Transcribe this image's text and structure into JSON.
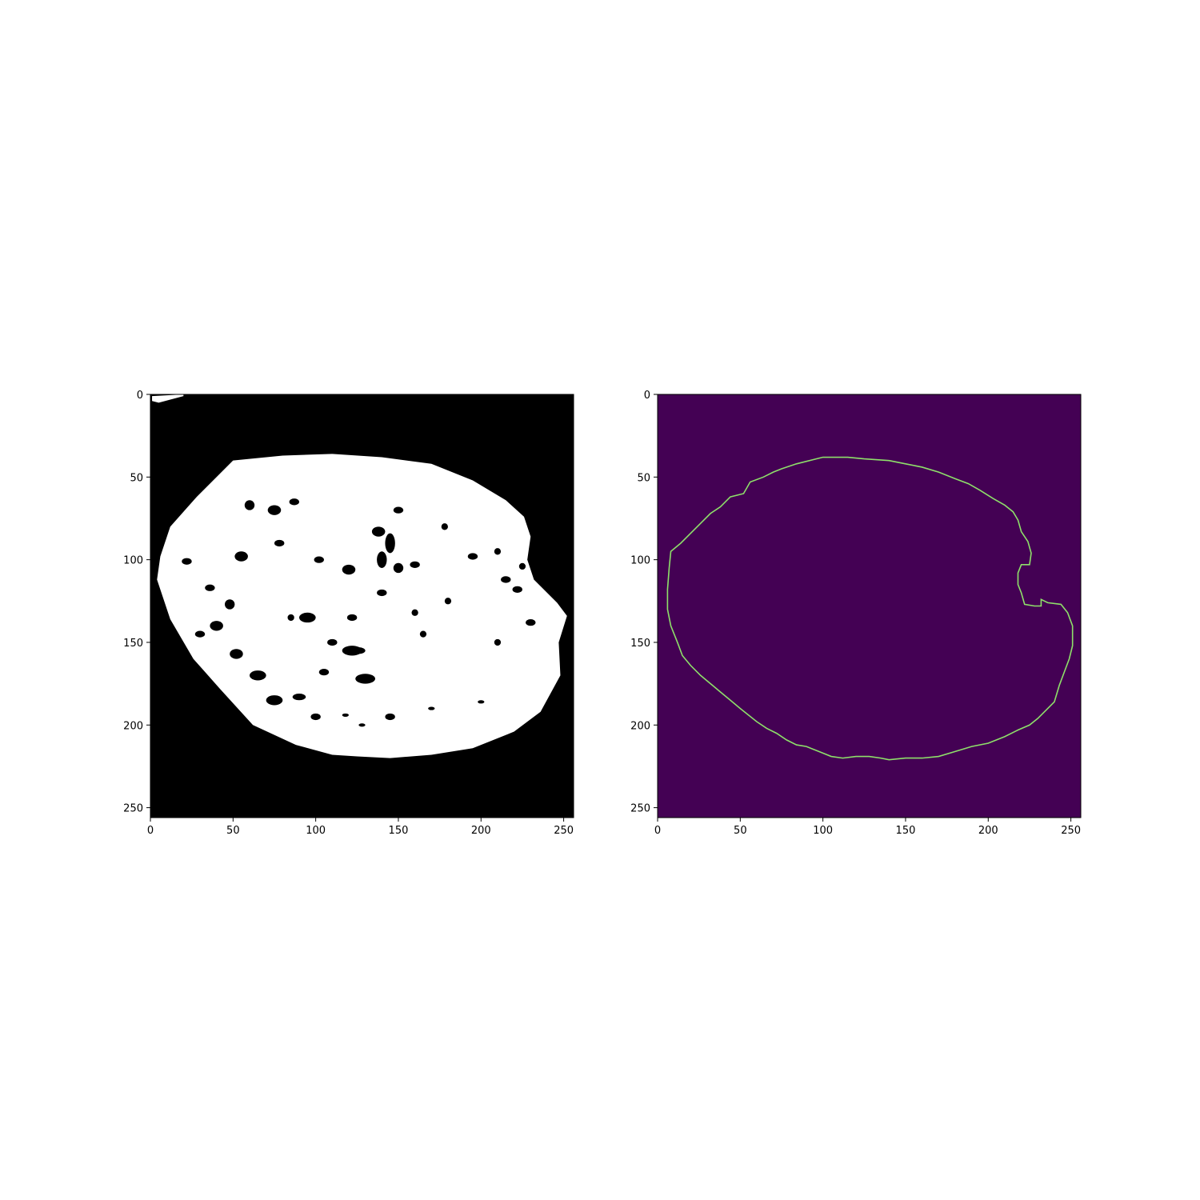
{
  "chart_data": [
    {
      "type": "heatmap",
      "title": "",
      "xlabel": "",
      "ylabel": "",
      "image_size": [
        256,
        256
      ],
      "xlim": [
        0,
        256
      ],
      "ylim": [
        256,
        0
      ],
      "x_ticks": [
        0,
        50,
        100,
        150,
        200,
        250
      ],
      "y_ticks": [
        0,
        50,
        100,
        150,
        200,
        250
      ],
      "x_tick_labels": [
        "0",
        "50",
        "100",
        "150",
        "200",
        "250"
      ],
      "y_tick_labels": [
        "0",
        "50",
        "100",
        "150",
        "200",
        "250"
      ],
      "colormap": "gray",
      "background_color": "#000000",
      "foreground_color": "#ffffff",
      "content": "binary mask",
      "mask_outline": [
        [
          1,
          1
        ],
        [
          20,
          0
        ],
        [
          20,
          1
        ],
        [
          5,
          5
        ],
        [
          1,
          4
        ],
        [
          50,
          40
        ],
        [
          80,
          37
        ],
        [
          110,
          36
        ],
        [
          140,
          38
        ],
        [
          170,
          42
        ],
        [
          195,
          52
        ],
        [
          215,
          64
        ],
        [
          226,
          74
        ],
        [
          230,
          86
        ],
        [
          228,
          100
        ],
        [
          232,
          112
        ],
        [
          246,
          126
        ],
        [
          252,
          134
        ],
        [
          247,
          150
        ],
        [
          248,
          170
        ],
        [
          236,
          192
        ],
        [
          220,
          204
        ],
        [
          195,
          214
        ],
        [
          170,
          218
        ],
        [
          145,
          220
        ],
        [
          125,
          219
        ],
        [
          110,
          218
        ],
        [
          88,
          212
        ],
        [
          62,
          200
        ],
        [
          42,
          178
        ],
        [
          26,
          160
        ],
        [
          12,
          136
        ],
        [
          4,
          112
        ],
        [
          6,
          98
        ],
        [
          12,
          80
        ],
        [
          28,
          62
        ]
      ],
      "holes": [
        [
          95,
          135,
          5,
          3
        ],
        [
          102,
          100,
          3,
          2
        ],
        [
          120,
          106,
          4,
          3
        ],
        [
          75,
          185,
          5,
          3
        ],
        [
          90,
          183,
          4,
          2
        ],
        [
          122,
          155,
          6,
          3
        ],
        [
          55,
          98,
          4,
          3
        ],
        [
          22,
          101,
          3,
          2
        ],
        [
          65,
          170,
          5,
          3
        ],
        [
          130,
          172,
          6,
          3
        ],
        [
          40,
          140,
          4,
          3
        ],
        [
          52,
          157,
          4,
          3
        ],
        [
          30,
          145,
          3,
          2
        ],
        [
          110,
          150,
          3,
          2
        ],
        [
          140,
          120,
          3,
          2
        ],
        [
          150,
          105,
          3,
          3
        ],
        [
          165,
          145,
          2,
          2
        ],
        [
          210,
          150,
          2,
          2
        ],
        [
          100,
          195,
          3,
          2
        ],
        [
          138,
          83,
          4,
          3
        ],
        [
          126,
          155,
          4,
          2
        ],
        [
          105,
          168,
          3,
          2
        ],
        [
          145,
          195,
          3,
          2
        ],
        [
          48,
          127,
          3,
          3
        ],
        [
          75,
          70,
          4,
          3
        ],
        [
          87,
          65,
          3,
          2
        ],
        [
          60,
          67,
          3,
          3
        ],
        [
          150,
          70,
          3,
          2
        ],
        [
          145,
          90,
          3,
          6
        ],
        [
          140,
          100,
          3,
          5
        ],
        [
          160,
          103,
          3,
          2
        ],
        [
          195,
          98,
          3,
          2
        ],
        [
          215,
          112,
          3,
          2
        ],
        [
          222,
          118,
          3,
          2
        ],
        [
          230,
          138,
          3,
          2
        ],
        [
          122,
          135,
          3,
          2
        ],
        [
          160,
          132,
          2,
          2
        ],
        [
          78,
          90,
          3,
          2
        ],
        [
          85,
          135,
          2,
          2
        ],
        [
          170,
          190,
          2,
          1
        ],
        [
          118,
          194,
          2,
          1
        ],
        [
          200,
          186,
          2,
          1
        ],
        [
          36,
          117,
          3,
          2
        ],
        [
          128,
          200,
          2,
          1
        ],
        [
          210,
          95,
          2,
          2
        ],
        [
          225,
          104,
          2,
          2
        ],
        [
          178,
          80,
          2,
          2
        ],
        [
          180,
          125,
          2,
          2
        ]
      ]
    },
    {
      "type": "heatmap",
      "title": "",
      "xlabel": "",
      "ylabel": "",
      "image_size": [
        256,
        256
      ],
      "xlim": [
        0,
        256
      ],
      "ylim": [
        256,
        0
      ],
      "x_ticks": [
        0,
        50,
        100,
        150,
        200,
        250
      ],
      "y_ticks": [
        0,
        50,
        100,
        150,
        200,
        250
      ],
      "x_tick_labels": [
        "0",
        "50",
        "100",
        "150",
        "200",
        "250"
      ],
      "y_tick_labels": [
        "0",
        "50",
        "100",
        "150",
        "200",
        "250"
      ],
      "colormap": "viridis",
      "background_color": "#440154",
      "contour_color": "#8ee06a",
      "content": "contour",
      "contour": [
        [
          100,
          38
        ],
        [
          115,
          38
        ],
        [
          125,
          39
        ],
        [
          140,
          40
        ],
        [
          150,
          42
        ],
        [
          160,
          44
        ],
        [
          170,
          47
        ],
        [
          180,
          51
        ],
        [
          188,
          54
        ],
        [
          195,
          58
        ],
        [
          203,
          63
        ],
        [
          210,
          67
        ],
        [
          215,
          71
        ],
        [
          218,
          76
        ],
        [
          220,
          83
        ],
        [
          224,
          89
        ],
        [
          226,
          96
        ],
        [
          225,
          103
        ],
        [
          220,
          103
        ],
        [
          218,
          108
        ],
        [
          218,
          115
        ],
        [
          220,
          120
        ],
        [
          222,
          127
        ],
        [
          228,
          128
        ],
        [
          232,
          128
        ],
        [
          232,
          124
        ],
        [
          236,
          126
        ],
        [
          244,
          127
        ],
        [
          248,
          132
        ],
        [
          251,
          140
        ],
        [
          251,
          152
        ],
        [
          249,
          160
        ],
        [
          246,
          168
        ],
        [
          243,
          176
        ],
        [
          240,
          186
        ],
        [
          235,
          191
        ],
        [
          230,
          196
        ],
        [
          225,
          200
        ],
        [
          218,
          203
        ],
        [
          210,
          207
        ],
        [
          200,
          211
        ],
        [
          190,
          213
        ],
        [
          180,
          216
        ],
        [
          170,
          219
        ],
        [
          160,
          220
        ],
        [
          150,
          220
        ],
        [
          140,
          221
        ],
        [
          135,
          220
        ],
        [
          128,
          219
        ],
        [
          120,
          219
        ],
        [
          112,
          220
        ],
        [
          105,
          219
        ],
        [
          100,
          217
        ],
        [
          95,
          215
        ],
        [
          90,
          213
        ],
        [
          84,
          212
        ],
        [
          78,
          209
        ],
        [
          72,
          205
        ],
        [
          66,
          202
        ],
        [
          60,
          198
        ],
        [
          55,
          194
        ],
        [
          50,
          190
        ],
        [
          44,
          185
        ],
        [
          38,
          180
        ],
        [
          32,
          175
        ],
        [
          26,
          170
        ],
        [
          20,
          164
        ],
        [
          15,
          158
        ],
        [
          12,
          150
        ],
        [
          8,
          140
        ],
        [
          6,
          130
        ],
        [
          6,
          118
        ],
        [
          7,
          105
        ],
        [
          8,
          95
        ],
        [
          14,
          90
        ],
        [
          20,
          84
        ],
        [
          26,
          78
        ],
        [
          32,
          72
        ],
        [
          38,
          68
        ],
        [
          44,
          62
        ],
        [
          52,
          60
        ],
        [
          56,
          53
        ],
        [
          64,
          50
        ],
        [
          70,
          47
        ],
        [
          75,
          45
        ],
        [
          84,
          42
        ]
      ]
    }
  ]
}
